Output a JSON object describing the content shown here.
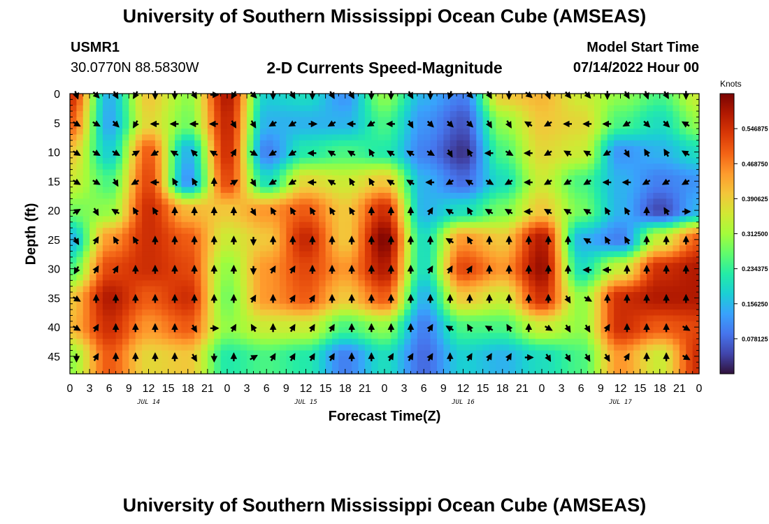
{
  "header": {
    "title": "University of Southern Mississippi Ocean Cube (AMSEAS)",
    "station": "USMR1",
    "coords": "30.0770N  88.5830W",
    "plot_title": "2-D Currents Speed-Magnitude",
    "model_start_label": "Model Start Time",
    "model_start_value": "07/14/2022 Hour 00"
  },
  "footer": {
    "title": "University of Southern Mississippi Ocean Cube (AMSEAS)"
  },
  "colors": {
    "palette": [
      "#30123b",
      "#4145ab",
      "#4675ed",
      "#39a2fc",
      "#1bcfd4",
      "#24eca6",
      "#61fc6c",
      "#a4fc3b",
      "#d1e834",
      "#f3c63a",
      "#fe9b2d",
      "#f36315",
      "#d93806",
      "#b11901",
      "#7a0402"
    ]
  },
  "chart_data": {
    "type": "heatmap",
    "title": "2-D Currents Speed-Magnitude",
    "xlabel": "Forecast Time(Z)",
    "ylabel": "Depth (ft)",
    "x_ticks": [
      "0",
      "3",
      "6",
      "9",
      "12",
      "15",
      "18",
      "21",
      "0",
      "3",
      "6",
      "9",
      "12",
      "15",
      "18",
      "21",
      "0",
      "3",
      "6",
      "9",
      "12",
      "15",
      "18",
      "21",
      "0",
      "3",
      "6",
      "9",
      "12",
      "15",
      "18",
      "21",
      "0"
    ],
    "x_tick_hours": [
      0,
      3,
      6,
      9,
      12,
      15,
      18,
      21,
      24,
      27,
      30,
      33,
      36,
      39,
      42,
      45,
      48,
      51,
      54,
      57,
      60,
      63,
      66,
      69,
      72,
      75,
      78,
      81,
      84,
      87,
      90,
      93,
      96
    ],
    "date_labels": [
      {
        "label": "JUL 14",
        "hour": 12
      },
      {
        "label": "JUL 15",
        "hour": 36
      },
      {
        "label": "JUL 16",
        "hour": 60
      },
      {
        "label": "JUL 17",
        "hour": 84
      }
    ],
    "xlim": [
      0,
      96
    ],
    "y_ticks": [
      "0",
      "5",
      "10",
      "15",
      "20",
      "25",
      "30",
      "35",
      "40",
      "45"
    ],
    "y_tick_values": [
      0,
      5,
      10,
      15,
      20,
      25,
      30,
      35,
      40,
      45
    ],
    "ylim": [
      0,
      48
    ],
    "colorbar": {
      "unit": "Knots",
      "range": [
        0,
        0.625
      ],
      "tick_labels": [
        "0.546875",
        "0.468750",
        "0.390625",
        "0.312500",
        "0.234375",
        "0.156250",
        "0.078125"
      ],
      "tick_values": [
        0.546875,
        0.46875,
        0.390625,
        0.3125,
        0.234375,
        0.15625,
        0.078125
      ]
    },
    "speed_field": {
      "description": "Current speed (knots) sampled every 6 h at depths 0-45 ft",
      "hours": [
        0,
        6,
        12,
        18,
        24,
        30,
        36,
        42,
        48,
        54,
        60,
        66,
        72,
        78,
        84,
        90,
        96
      ],
      "depths": [
        0,
        5,
        10,
        15,
        20,
        25,
        30,
        35,
        40,
        45
      ],
      "values": [
        [
          0.55,
          0.15,
          0.4,
          0.3,
          0.58,
          0.18,
          0.2,
          0.12,
          0.3,
          0.15,
          0.1,
          0.4,
          0.42,
          0.35,
          0.3,
          0.25,
          0.35
        ],
        [
          0.5,
          0.14,
          0.38,
          0.28,
          0.56,
          0.15,
          0.15,
          0.15,
          0.25,
          0.12,
          0.06,
          0.3,
          0.4,
          0.38,
          0.25,
          0.2,
          0.3
        ],
        [
          0.4,
          0.18,
          0.5,
          0.15,
          0.55,
          0.1,
          0.22,
          0.25,
          0.22,
          0.1,
          0.03,
          0.25,
          0.38,
          0.35,
          0.12,
          0.15,
          0.2
        ],
        [
          0.35,
          0.25,
          0.52,
          0.12,
          0.52,
          0.2,
          0.38,
          0.35,
          0.4,
          0.15,
          0.08,
          0.2,
          0.35,
          0.25,
          0.15,
          0.1,
          0.12
        ],
        [
          0.28,
          0.3,
          0.55,
          0.42,
          0.4,
          0.45,
          0.5,
          0.4,
          0.55,
          0.15,
          0.2,
          0.28,
          0.4,
          0.28,
          0.15,
          0.05,
          0.15
        ],
        [
          0.15,
          0.45,
          0.55,
          0.5,
          0.35,
          0.4,
          0.56,
          0.4,
          0.62,
          0.2,
          0.45,
          0.4,
          0.58,
          0.15,
          0.1,
          0.35,
          0.5
        ],
        [
          0.25,
          0.52,
          0.55,
          0.52,
          0.3,
          0.45,
          0.52,
          0.45,
          0.58,
          0.2,
          0.52,
          0.45,
          0.6,
          0.2,
          0.35,
          0.55,
          0.58
        ],
        [
          0.4,
          0.58,
          0.5,
          0.55,
          0.28,
          0.45,
          0.5,
          0.4,
          0.5,
          0.15,
          0.4,
          0.35,
          0.55,
          0.3,
          0.55,
          0.58,
          0.58
        ],
        [
          0.42,
          0.55,
          0.45,
          0.5,
          0.3,
          0.35,
          0.35,
          0.25,
          0.3,
          0.1,
          0.25,
          0.25,
          0.35,
          0.3,
          0.55,
          0.5,
          0.52
        ],
        [
          0.3,
          0.5,
          0.38,
          0.4,
          0.22,
          0.25,
          0.22,
          0.1,
          0.2,
          0.08,
          0.18,
          0.15,
          0.2,
          0.25,
          0.45,
          0.35,
          0.55
        ]
      ]
    },
    "vectors": {
      "description": "Current direction in degrees (0 = north / up, clockwise) at each tick hour (0-96 every 3 h) and depth 0-45 ft every 5 ft",
      "hours": [
        0,
        3,
        6,
        9,
        12,
        15,
        18,
        21,
        24,
        27,
        30,
        33,
        36,
        39,
        42,
        45,
        48,
        51,
        54,
        57,
        60,
        63,
        66,
        69,
        72,
        75,
        78,
        81,
        84,
        87,
        90,
        93,
        96
      ],
      "depths": [
        0,
        5,
        10,
        15,
        20,
        25,
        30,
        35,
        40,
        45
      ],
      "directions": [
        [
          160,
          135,
          150,
          210,
          180,
          180,
          150,
          90,
          210,
          135,
          180,
          150,
          180,
          150,
          150,
          180,
          180,
          150,
          180,
          200,
          135,
          150,
          180,
          130,
          160,
          140,
          140,
          180,
          150,
          160,
          150,
          180,
          180
        ],
        [
          120,
          120,
          135,
          210,
          270,
          270,
          270,
          270,
          150,
          150,
          240,
          240,
          90,
          240,
          270,
          240,
          270,
          150,
          135,
          135,
          135,
          150,
          150,
          300,
          240,
          270,
          270,
          270,
          240,
          135,
          135,
          300,
          300
        ],
        [
          120,
          120,
          120,
          60,
          240,
          300,
          315,
          300,
          30,
          120,
          240,
          240,
          270,
          300,
          300,
          330,
          300,
          300,
          120,
          150,
          330,
          270,
          120,
          270,
          240,
          300,
          300,
          240,
          150,
          330,
          330,
          300,
          330
        ],
        [
          120,
          120,
          150,
          240,
          270,
          330,
          330,
          0,
          60,
          150,
          240,
          240,
          270,
          300,
          330,
          330,
          300,
          300,
          270,
          240,
          300,
          120,
          240,
          270,
          240,
          240,
          240,
          270,
          270,
          240,
          240,
          240,
          240
        ],
        [
          60,
          150,
          300,
          330,
          330,
          0,
          0,
          0,
          0,
          150,
          330,
          330,
          330,
          330,
          330,
          0,
          0,
          0,
          30,
          300,
          330,
          300,
          300,
          270,
          300,
          300,
          300,
          330,
          330,
          0,
          330,
          90,
          90
        ],
        [
          150,
          30,
          330,
          330,
          0,
          0,
          0,
          0,
          0,
          180,
          0,
          0,
          0,
          0,
          0,
          0,
          0,
          0,
          0,
          300,
          330,
          0,
          0,
          0,
          0,
          0,
          300,
          330,
          330,
          0,
          0,
          0,
          120
        ],
        [
          210,
          30,
          30,
          0,
          0,
          0,
          0,
          0,
          0,
          180,
          30,
          30,
          0,
          0,
          0,
          0,
          0,
          0,
          30,
          30,
          30,
          0,
          0,
          0,
          0,
          0,
          270,
          270,
          0,
          0,
          0,
          0,
          0
        ],
        [
          120,
          0,
          0,
          0,
          0,
          0,
          0,
          0,
          0,
          30,
          0,
          30,
          30,
          0,
          0,
          0,
          0,
          0,
          0,
          0,
          0,
          0,
          0,
          0,
          0,
          150,
          120,
          0,
          0,
          0,
          0,
          0,
          150
        ],
        [
          120,
          30,
          0,
          0,
          0,
          0,
          150,
          90,
          30,
          330,
          0,
          30,
          30,
          30,
          0,
          0,
          0,
          0,
          30,
          300,
          330,
          300,
          330,
          0,
          120,
          150,
          150,
          30,
          0,
          0,
          0,
          120,
          150
        ],
        [
          180,
          30,
          0,
          0,
          0,
          0,
          150,
          180,
          0,
          60,
          30,
          30,
          30,
          30,
          0,
          0,
          30,
          30,
          30,
          0,
          30,
          30,
          30,
          90,
          150,
          150,
          150,
          150,
          30,
          0,
          0,
          120,
          150
        ]
      ]
    }
  }
}
